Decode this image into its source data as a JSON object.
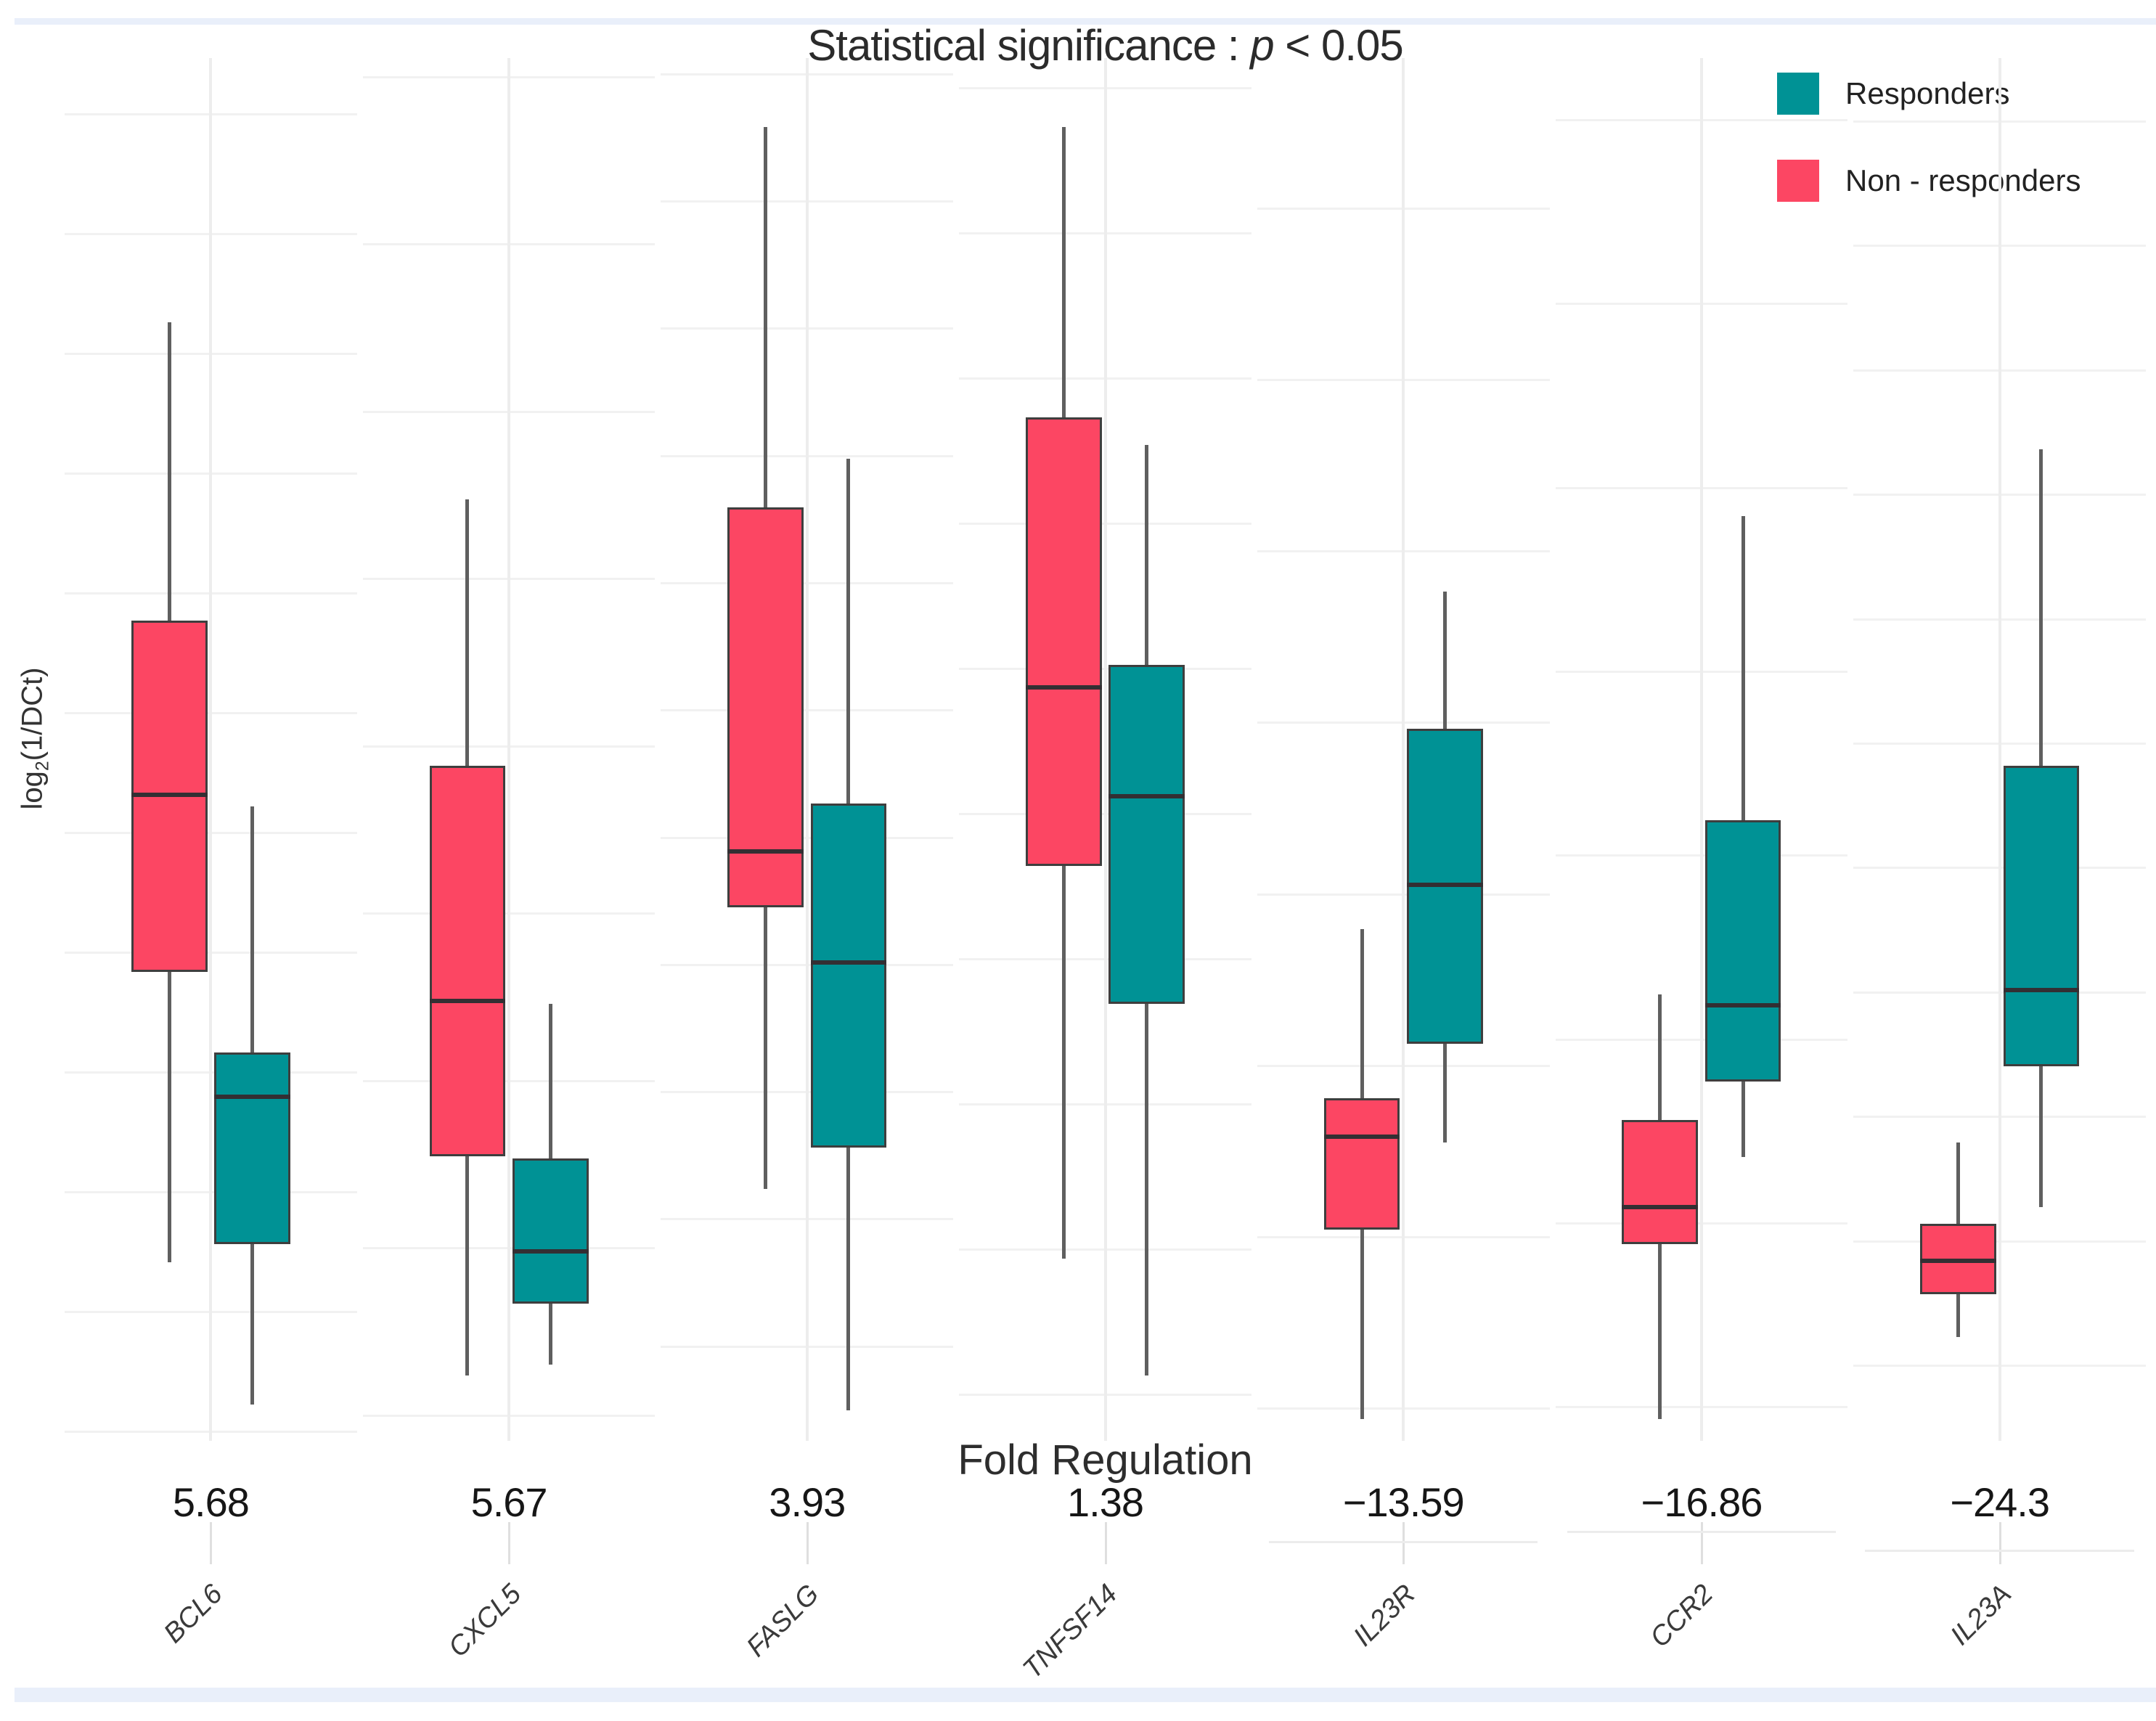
{
  "title": {
    "prefix": "Statistical significance : ",
    "italic": "p",
    "suffix": " < 0.05"
  },
  "legend": {
    "items": [
      {
        "label": "Responders",
        "color": "#009295"
      },
      {
        "label": "Non - responders",
        "color": "#FC4663"
      }
    ]
  },
  "y_axis": {
    "label_base": "log",
    "label_sub": "2",
    "label_rest": "(1/DCt)"
  },
  "x_axis": {
    "title": "Fold Regulation"
  },
  "colors": {
    "responders": "#009295",
    "non_responders": "#FC4663",
    "box_border": "#3E3E3E",
    "median_line": "#332f33",
    "whisker": "#5F5F5F",
    "gridline": "#F1F1F1",
    "page_band": "#E9EFFA"
  },
  "chart_data": {
    "type": "boxplot",
    "title": "Statistical significance : p < 0.05",
    "ylabel": "log2(1/DCt)",
    "xlabel": "Fold Regulation",
    "legend_position": "top-right",
    "grid": "faint, free y-scale per facet",
    "y_axis_note": "y axis has no numeric tick labels; box statistics are estimated as percent of y-axis height measured from the axis bottom (0 = bottom, 100 = top)",
    "series": [
      {
        "name": "Responders",
        "color": "#009295"
      },
      {
        "name": "Non - responders",
        "color": "#FC4663"
      }
    ],
    "categories": [
      {
        "gene": "BCL6",
        "fold_regulation": 5.68,
        "fold_label": "5.68",
        "non_responders": {
          "whisker_high": 80.9,
          "q3": 59.3,
          "median": 46.7,
          "q1": 33.9,
          "whisker_low": 12.9
        },
        "responders": {
          "whisker_high": 45.9,
          "q3": 28.1,
          "median": 24.9,
          "q1": 14.2,
          "whisker_low": 2.6
        }
      },
      {
        "gene": "CXCL5",
        "fold_regulation": 5.67,
        "fold_label": "5.67",
        "non_responders": {
          "whisker_high": 68.1,
          "q3": 48.8,
          "median": 31.8,
          "q1": 20.6,
          "whisker_low": 4.7
        },
        "responders": {
          "whisker_high": 31.6,
          "q3": 20.4,
          "median": 13.7,
          "q1": 9.9,
          "whisker_low": 5.5
        }
      },
      {
        "gene": "FASLG",
        "fold_regulation": 3.93,
        "fold_label": "3.93",
        "non_responders": {
          "whisker_high": 95.0,
          "q3": 67.5,
          "median": 42.6,
          "q1": 38.6,
          "whisker_low": 18.2
        },
        "responders": {
          "whisker_high": 71.0,
          "q3": 46.1,
          "median": 34.6,
          "q1": 21.2,
          "whisker_low": 2.2
        }
      },
      {
        "gene": "TNFSF14",
        "fold_regulation": 1.38,
        "fold_label": "1.38",
        "non_responders": {
          "whisker_high": 95.0,
          "q3": 74.0,
          "median": 54.5,
          "q1": 41.6,
          "whisker_low": 13.2
        },
        "responders": {
          "whisker_high": 72.0,
          "q3": 56.1,
          "median": 46.6,
          "q1": 31.6,
          "whisker_low": 4.7
        }
      },
      {
        "gene": "IL23R",
        "fold_regulation": -13.59,
        "fold_label": "−13.59",
        "non_responders": {
          "whisker_high": 37.0,
          "q3": 24.8,
          "median": 22.0,
          "q1": 15.3,
          "whisker_low": 1.6
        },
        "responders": {
          "whisker_high": 61.4,
          "q3": 51.5,
          "median": 40.2,
          "q1": 28.7,
          "whisker_low": 21.6
        }
      },
      {
        "gene": "CCR2",
        "fold_regulation": -16.86,
        "fold_label": "−16.86",
        "non_responders": {
          "whisker_high": 32.3,
          "q3": 23.2,
          "median": 16.9,
          "q1": 14.2,
          "whisker_low": 1.6
        },
        "responders": {
          "whisker_high": 66.9,
          "q3": 44.9,
          "median": 31.5,
          "q1": 26.0,
          "whisker_low": 20.5
        }
      },
      {
        "gene": "IL23A",
        "fold_regulation": -24.3,
        "fold_label": "−24.3",
        "non_responders": {
          "whisker_high": 21.6,
          "q3": 15.7,
          "median": 13.0,
          "q1": 10.6,
          "whisker_low": 7.5
        },
        "responders": {
          "whisker_high": 71.7,
          "q3": 48.8,
          "median": 32.6,
          "q1": 27.1,
          "whisker_low": 16.9
        }
      }
    ]
  }
}
